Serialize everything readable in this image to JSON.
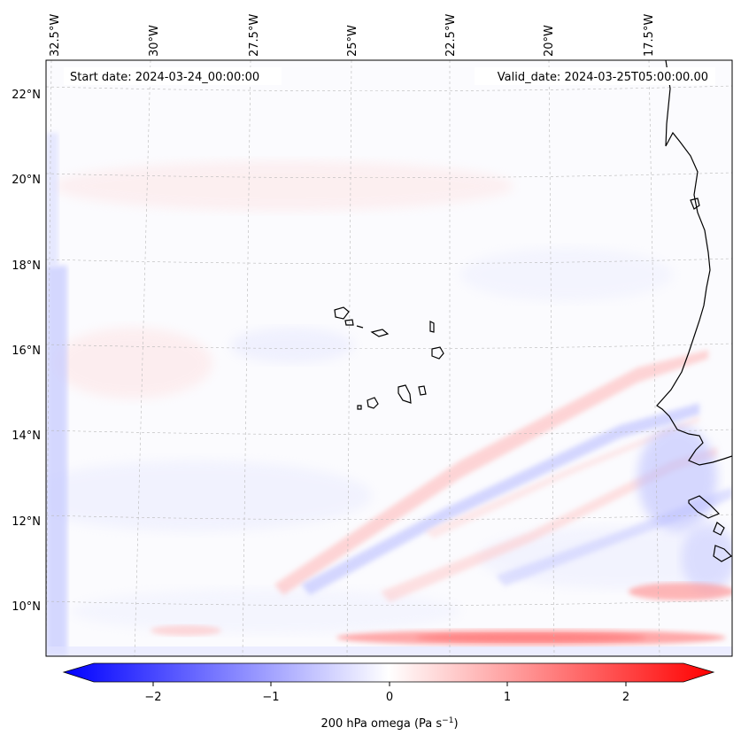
{
  "map": {
    "start_date": "Start date: 2024-03-24_00:00:00",
    "valid_date": "Valid_date: 2024-03-25T05:00:00.00",
    "lon_labels": [
      "32.5°W",
      "30°W",
      "27.5°W",
      "25°W",
      "22.5°W",
      "20°W",
      "17.5°W"
    ],
    "lat_labels": [
      "22°N",
      "20°N",
      "18°N",
      "16°N",
      "14°N",
      "12°N",
      "10°N"
    ],
    "variable": "200 hPa omega"
  },
  "colorbar": {
    "ticks": [
      "−2",
      "−1",
      "0",
      "1",
      "2"
    ],
    "label_main": "200 hPa omega (Pa s",
    "label_sup": "−1",
    "label_end": ")",
    "colors": {
      "low": "#0000ff",
      "mid": "#ffffff",
      "high": "#ff0000"
    }
  }
}
